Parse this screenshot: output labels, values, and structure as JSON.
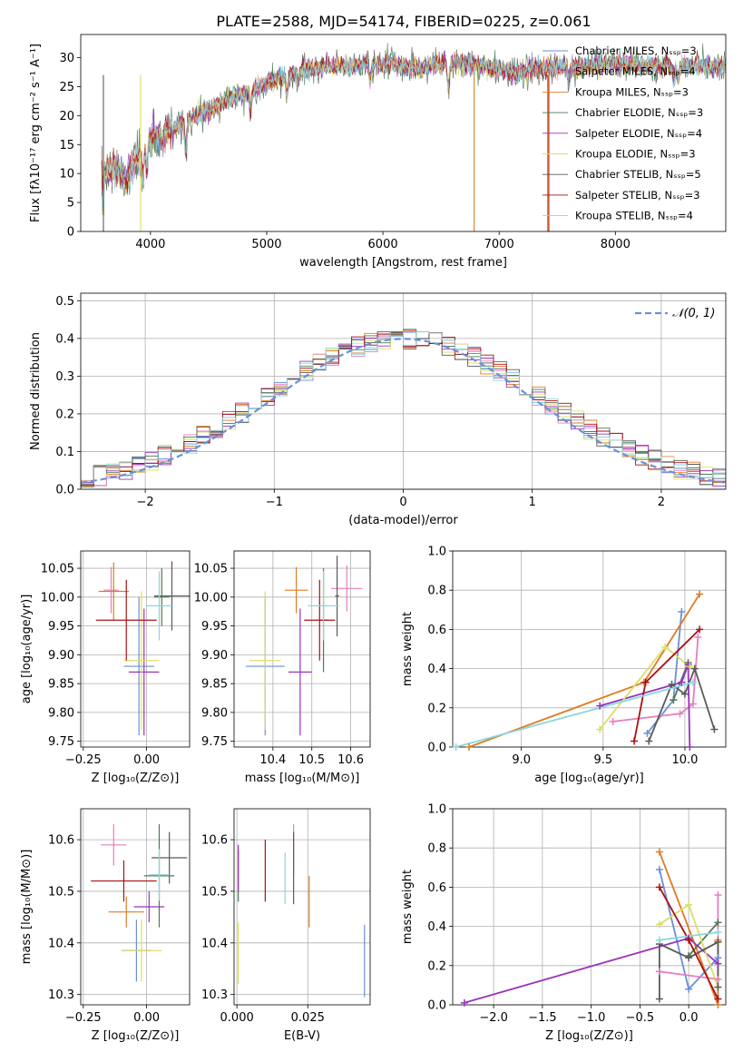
{
  "figure_title": "PLATE=2588, MJD=54174, FIBERID=0225, z=0.061",
  "colors": [
    "#6a8fdb",
    "#e67fbf",
    "#e07b22",
    "#4e7a52",
    "#9933bb",
    "#dddd66",
    "#5a5a5a",
    "#aa1111",
    "#88d8dd"
  ],
  "chart_data": [
    {
      "id": "spectrum",
      "type": "line",
      "xlabel": "wavelength [Angstrom, rest frame]",
      "ylabel": "Flux [fλ10⁻¹⁷ erg cm⁻² s⁻¹ A⁻¹]",
      "xlim": [
        3400,
        8950
      ],
      "ylim": [
        0,
        34
      ],
      "xticks": [
        4000,
        5000,
        6000,
        7000,
        8000
      ],
      "yticks": [
        0,
        5,
        10,
        15,
        20,
        25,
        30
      ],
      "legend_position": "top-right",
      "legend": [
        "Chabrier MILES, Nₛₛₚ=3",
        "Salpeter MILES, Nₛₛₚ=4",
        "Kroupa MILES, Nₛₛₚ=3",
        "Chabrier ELODIE, Nₛₛₚ=3",
        "Salpeter ELODIE, Nₛₛₚ=4",
        "Kroupa ELODIE, Nₛₛₚ=3",
        "Chabrier STELIB, Nₛₛₚ=5",
        "Salpeter STELIB, Nₛₛₚ=3",
        "Kroupa STELIB, Nₛₛₚ=4"
      ],
      "continuum": {
        "x": [
          3580,
          3700,
          3800,
          3950,
          4100,
          4300,
          4500,
          4700,
          4900,
          5100,
          5300,
          5500,
          5700,
          5900,
          6100,
          6300,
          6500,
          6700,
          6900,
          7000,
          7100,
          7200,
          7300,
          7400,
          7500,
          7700,
          7900,
          8100,
          8300,
          8500,
          8700,
          8950
        ],
        "y": [
          10,
          11,
          9,
          15,
          17,
          19,
          21,
          23,
          24.5,
          26.5,
          28,
          28.5,
          28.5,
          29,
          28.8,
          28,
          29,
          29,
          28.5,
          28,
          27.5,
          27.5,
          28,
          28,
          28.5,
          28.5,
          29,
          29,
          28.5,
          28.5,
          28.5,
          28.5
        ]
      }
    },
    {
      "id": "residuals",
      "type": "histogram",
      "xlabel": "(data-model)/error",
      "ylabel": "Normed distribution",
      "xlim": [
        -2.5,
        2.5
      ],
      "ylim": [
        0,
        0.52
      ],
      "xticks": [
        -2,
        -1,
        0,
        1,
        2
      ],
      "yticks": [
        0,
        0.1,
        0.2,
        0.3,
        0.4,
        0.5
      ],
      "grid": true,
      "bin_width": 0.1,
      "legend_position": "top-right",
      "reference_label": "𝒩(0, 1)"
    },
    {
      "id": "age-vs-Z",
      "type": "scatter",
      "xlabel": "Z [log₁₀(Z/Z⊙)]",
      "ylabel": "age  [log₁₀(age/yr)]",
      "xlim": [
        -0.26,
        0.17
      ],
      "ylim": [
        9.74,
        10.08
      ],
      "xticks": [
        -0.25,
        0.0
      ],
      "yticks": [
        9.75,
        9.8,
        9.85,
        9.9,
        9.95,
        10.0,
        10.05
      ],
      "grid": true,
      "points": [
        {
          "x": -0.03,
          "y": 9.88,
          "xerr": 0.06,
          "yerr": 0.12
        },
        {
          "x": -0.14,
          "y": 10.012,
          "xerr": 0.03,
          "yerr": 0.04
        },
        {
          "x": -0.13,
          "y": 10.01,
          "xerr": 0.06,
          "yerr": 0.05
        },
        {
          "x": 0.06,
          "y": 10.0,
          "xerr": 0.03,
          "yerr": 0.05
        },
        {
          "x": -0.01,
          "y": 9.87,
          "xerr": 0.06,
          "yerr": 0.11
        },
        {
          "x": -0.02,
          "y": 9.89,
          "xerr": 0.07,
          "yerr": 0.12
        },
        {
          "x": 0.1,
          "y": 10.002,
          "xerr": 0.07,
          "yerr": 0.06
        },
        {
          "x": -0.08,
          "y": 9.96,
          "xerr": 0.12,
          "yerr": 0.07
        },
        {
          "x": 0.05,
          "y": 9.985,
          "xerr": 0.05,
          "yerr": 0.06
        }
      ]
    },
    {
      "id": "age-vs-mass",
      "type": "scatter",
      "xlabel": "mass [log₁₀(M/M⊙)]",
      "ylabel": "",
      "xlim": [
        10.3,
        10.65
      ],
      "ylim": [
        9.74,
        10.08
      ],
      "xticks": [
        10.4,
        10.5,
        10.6
      ],
      "yticks": [
        9.75,
        9.8,
        9.85,
        9.9,
        9.95,
        10.0,
        10.05
      ],
      "grid": true,
      "points": [
        {
          "x": 10.38,
          "y": 9.88,
          "xerr": 0.05,
          "yerr": 0.12
        },
        {
          "x": 10.59,
          "y": 10.015,
          "xerr": 0.04,
          "yerr": 0.04
        },
        {
          "x": 10.46,
          "y": 10.012,
          "xerr": 0.03,
          "yerr": 0.04
        },
        {
          "x": 10.53,
          "y": 9.96,
          "xerr": 0.01,
          "yerr": 0.09
        },
        {
          "x": 10.47,
          "y": 9.87,
          "xerr": 0.03,
          "yerr": 0.11
        },
        {
          "x": 10.38,
          "y": 9.89,
          "xerr": 0.04,
          "yerr": 0.12
        },
        {
          "x": 10.565,
          "y": 10.002,
          "xerr": 0.005,
          "yerr": 0.07
        },
        {
          "x": 10.52,
          "y": 9.96,
          "xerr": 0.04,
          "yerr": 0.07
        },
        {
          "x": 10.53,
          "y": 9.985,
          "xerr": 0.04,
          "yerr": 0.06
        }
      ]
    },
    {
      "id": "weight-vs-age",
      "type": "line",
      "xlabel": "age  [log₁₀(age/yr)]",
      "ylabel": "mass weight",
      "xlim": [
        8.58,
        10.25
      ],
      "ylim": [
        0,
        1
      ],
      "xticks": [
        9.0,
        9.5,
        10.0
      ],
      "yticks": [
        0.0,
        0.2,
        0.4,
        0.6,
        0.8,
        1.0
      ],
      "grid": true,
      "series": [
        {
          "x": [
            9.77,
            9.93,
            9.98
          ],
          "y": [
            0.07,
            0.24,
            0.69
          ]
        },
        {
          "x": [
            9.56,
            9.97,
            10.05,
            10.08
          ],
          "y": [
            0.13,
            0.17,
            0.22,
            0.56
          ]
        },
        {
          "x": [
            8.68,
            9.75,
            10.09
          ],
          "y": [
            0.0,
            0.33,
            0.78
          ]
        },
        {
          "x": [
            9.93,
            10.02
          ],
          "y": [
            0.24,
            0.43
          ]
        },
        {
          "x": [
            9.48,
            9.98,
            10.02,
            10.03
          ],
          "y": [
            0.21,
            0.33,
            0.42,
            0.0
          ]
        },
        {
          "x": [
            9.48,
            9.88,
            10.03
          ],
          "y": [
            0.09,
            0.51,
            0.41
          ]
        },
        {
          "x": [
            9.78,
            9.92,
            10.0,
            10.06,
            10.18
          ],
          "y": [
            0.03,
            0.32,
            0.27,
            0.4,
            0.09
          ]
        },
        {
          "x": [
            9.69,
            9.76,
            10.09
          ],
          "y": [
            0.03,
            0.33,
            0.6
          ]
        },
        {
          "x": [
            8.6,
            10.05
          ],
          "y": [
            0.0,
            0.33
          ]
        }
      ]
    },
    {
      "id": "mass-vs-Z",
      "type": "scatter",
      "xlabel": "Z [log₁₀(Z/Z⊙)]",
      "ylabel": "mass [log₁₀(M/M⊙)]",
      "xlim": [
        -0.26,
        0.17
      ],
      "ylim": [
        10.28,
        10.66
      ],
      "xticks": [
        -0.25,
        0.0
      ],
      "yticks": [
        10.3,
        10.4,
        10.5,
        10.6
      ],
      "grid": true,
      "points": [
        {
          "x": -0.04,
          "y": 10.385,
          "xerr": 0.06,
          "yerr": 0.06
        },
        {
          "x": -0.13,
          "y": 10.59,
          "xerr": 0.05,
          "yerr": 0.04
        },
        {
          "x": -0.08,
          "y": 10.46,
          "xerr": 0.07,
          "yerr": 0.03
        },
        {
          "x": 0.05,
          "y": 10.53,
          "xerr": 0.06,
          "yerr": 0.1
        },
        {
          "x": 0.01,
          "y": 10.47,
          "xerr": 0.06,
          "yerr": 0.03
        },
        {
          "x": -0.02,
          "y": 10.385,
          "xerr": 0.08,
          "yerr": 0.06
        },
        {
          "x": 0.09,
          "y": 10.565,
          "xerr": 0.07,
          "yerr": 0.05
        },
        {
          "x": -0.09,
          "y": 10.52,
          "xerr": 0.13,
          "yerr": 0.04
        },
        {
          "x": 0.05,
          "y": 10.532,
          "xerr": 0.04,
          "yerr": 0.05
        }
      ]
    },
    {
      "id": "mass-vs-EBV",
      "type": "scatter",
      "xlabel": "E(B-V)",
      "ylabel": "",
      "xlim": [
        -0.001,
        0.047
      ],
      "ylim": [
        10.28,
        10.66
      ],
      "xticks": [
        0.0,
        0.025
      ],
      "yticks": [
        10.3,
        10.4,
        10.5,
        10.6
      ],
      "grid": true,
      "points": [
        {
          "x": 0.045,
          "y": 10.365,
          "xerr": 0,
          "yerr": 0.07
        },
        {
          "x": 0.02,
          "y": 10.58,
          "xerr": 0,
          "yerr": 0.05
        },
        {
          "x": 0.0255,
          "y": 10.48,
          "xerr": 0,
          "yerr": 0.05
        },
        {
          "x": 0.0005,
          "y": 10.53,
          "xerr": 0,
          "yerr": 0.05
        },
        {
          "x": 0.0005,
          "y": 10.545,
          "xerr": 0,
          "yerr": 0.045
        },
        {
          "x": 0.0005,
          "y": 10.38,
          "xerr": 0,
          "yerr": 0.06
        },
        {
          "x": 0.02,
          "y": 10.545,
          "xerr": 0,
          "yerr": 0.07
        },
        {
          "x": 0.01,
          "y": 10.54,
          "xerr": 0,
          "yerr": 0.06
        },
        {
          "x": 0.017,
          "y": 10.525,
          "xerr": 0,
          "yerr": 0.05
        }
      ]
    },
    {
      "id": "weight-vs-Z",
      "type": "line",
      "xlabel": "Z [log₁₀(Z/Z⊙)]",
      "ylabel": "mass weight",
      "xlim": [
        -2.42,
        0.38
      ],
      "ylim": [
        0,
        1
      ],
      "xticks": [
        -2.0,
        -1.5,
        -1.0,
        -0.5,
        0.0
      ],
      "yticks": [
        0.0,
        0.2,
        0.4,
        0.6,
        0.8,
        1.0
      ],
      "grid": true,
      "series": [
        {
          "x": [
            -0.3,
            0.0,
            0.3
          ],
          "y": [
            0.69,
            0.08,
            0.24
          ]
        },
        {
          "x": [
            -0.3,
            0.3,
            0.3
          ],
          "y": [
            0.17,
            0.13,
            0.56
          ]
        },
        {
          "x": [
            -0.3,
            0.3,
            0.3
          ],
          "y": [
            0.78,
            0.0,
            0.33
          ]
        },
        {
          "x": [
            0.0,
            0.3
          ],
          "y": [
            0.25,
            0.42
          ]
        },
        {
          "x": [
            -2.3,
            0.0,
            0.3
          ],
          "y": [
            0.01,
            0.34,
            0.21
          ]
        },
        {
          "x": [
            -0.3,
            0.0,
            0.3
          ],
          "y": [
            0.41,
            0.51,
            0.09
          ]
        },
        {
          "x": [
            -0.3,
            -0.3,
            0.0,
            0.3,
            0.3
          ],
          "y": [
            0.03,
            0.31,
            0.24,
            0.32,
            0.09
          ]
        },
        {
          "x": [
            -0.3,
            0.0,
            0.3
          ],
          "y": [
            0.6,
            0.33,
            0.03
          ]
        },
        {
          "x": [
            -0.3,
            0.3
          ],
          "y": [
            0.33,
            0.37
          ]
        }
      ]
    }
  ]
}
